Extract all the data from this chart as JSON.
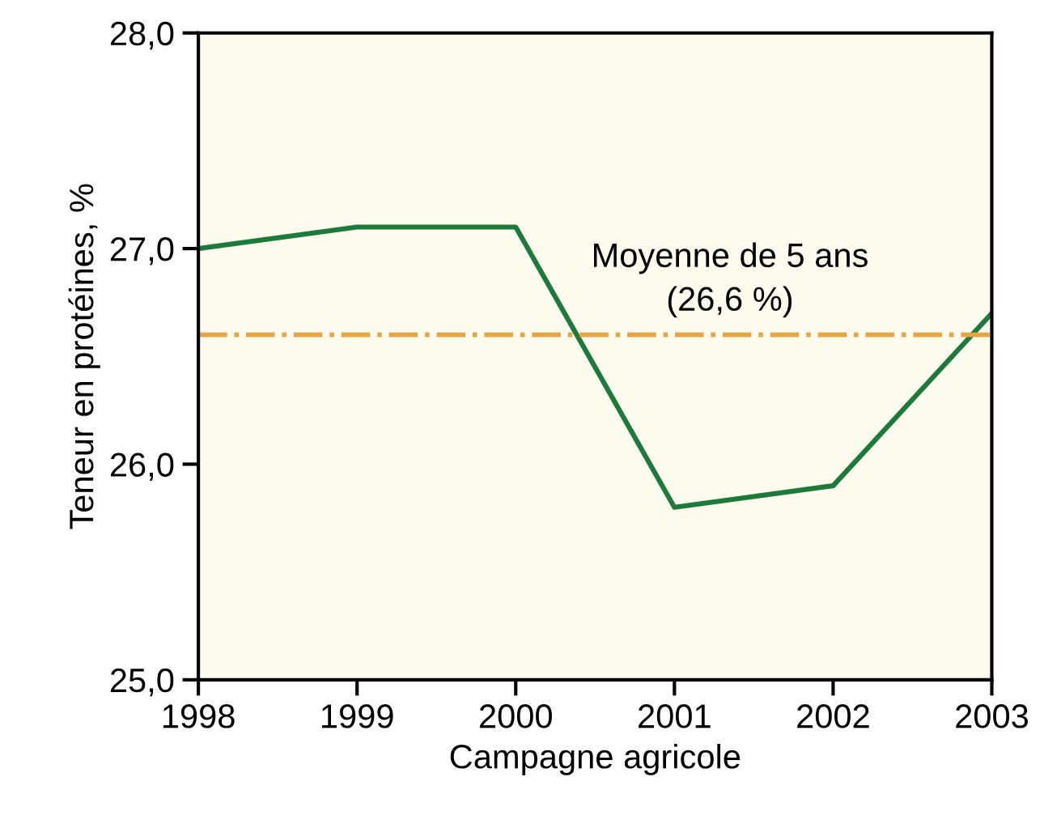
{
  "chart_data": {
    "type": "line",
    "xlabel": "Campagne agricole",
    "ylabel": "Teneur en protéines, %",
    "x": [
      1998,
      1999,
      2000,
      2001,
      2002,
      2003
    ],
    "series": [
      {
        "color": "#1e7a3c",
        "values": [
          27.0,
          27.1,
          27.1,
          25.8,
          25.9,
          26.7
        ]
      }
    ],
    "xlim": [
      1998,
      2003
    ],
    "xticks": [
      1998,
      1999,
      2000,
      2001,
      2002,
      2003
    ],
    "ylim": [
      25.0,
      28.0
    ],
    "yticks": [
      {
        "value": 25.0,
        "label": "25,0"
      },
      {
        "value": 26.0,
        "label": "26,0"
      },
      {
        "value": 27.0,
        "label": "27,0"
      },
      {
        "value": 28.0,
        "label": "28,0"
      }
    ],
    "ref_lines": [
      {
        "axis": "y",
        "value": 26.6,
        "label": "Moyenne de 5 ans\n(26,6 %)",
        "color": "#e8a441",
        "line_style": "dashdot"
      }
    ],
    "grid": false,
    "legend": false,
    "marker": "none",
    "line_style": "solid"
  }
}
